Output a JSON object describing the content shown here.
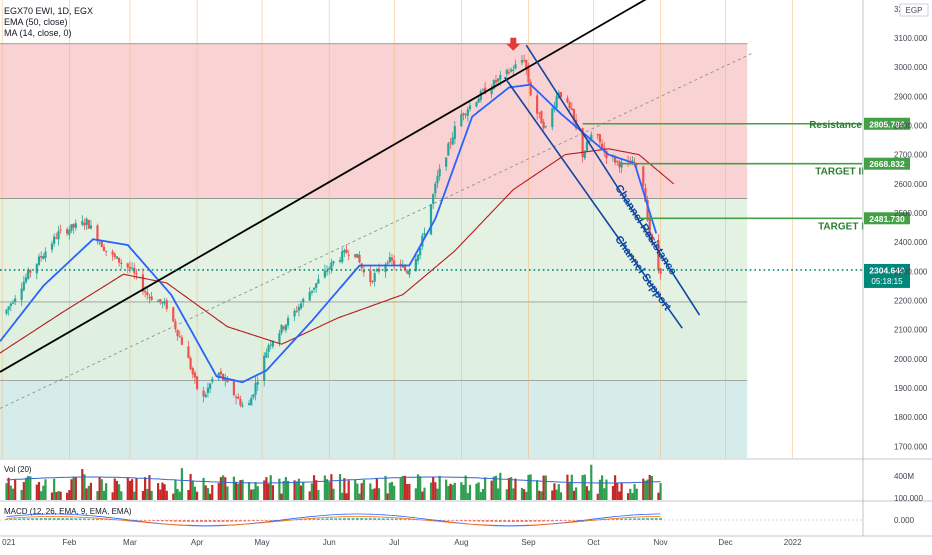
{
  "header": {
    "symbol_line": "EGX70 EWI, 1D, EGX",
    "ema_label": "EMA (50, close)",
    "ma_label": "MA (14, close, 0)",
    "currency": "EGP"
  },
  "colors": {
    "up": "#26a69a",
    "down": "#ef5350",
    "ema50": "#b71c1c",
    "ma14": "#2962ff",
    "channel": "#0d47a1",
    "trend": "#000000",
    "level_line": "#43a047",
    "level_text": "#2e7d32",
    "price_line": "#00897b",
    "zone_red": "#f9d3d3",
    "zone_green": "#e3f2e3",
    "zone_teal": "#d5eceb",
    "volume_up": "#2e9e4f",
    "volume_down": "#c62828",
    "volume_ma": "#3366cc"
  },
  "chart_data": {
    "type": "candlestick",
    "y_axis": {
      "ticks": [
        3200,
        3100,
        3000,
        2900,
        2800,
        2700,
        2600,
        2500,
        2400,
        2300,
        2200,
        2100,
        2000,
        1900,
        1800,
        1700
      ],
      "tick_labels": [
        "3200.000",
        "3100.000",
        "3000.000",
        "2900.000",
        "2800.000",
        "2700.000",
        "2600.000",
        "2500.000",
        "2400.000",
        "2300.000",
        "2200.000",
        "2100.000",
        "2000.000",
        "1900.000",
        "1800.000",
        "1700.000"
      ],
      "range": [
        1660,
        3230
      ]
    },
    "x_axis": {
      "labels": [
        "021",
        "Feb",
        "Mar",
        "Apr",
        "May",
        "Jun",
        "Jul",
        "Aug",
        "Sep",
        "Oct",
        "Nov",
        "Dec",
        "2022"
      ],
      "positions": [
        "2021-01-01",
        "2021-02-01",
        "2021-03-01",
        "2021-04-01",
        "2021-05-01",
        "2021-06-01",
        "2021-07-01",
        "2021-08-01",
        "2021-09-01",
        "2021-10-01",
        "2021-11-01",
        "2021-12-01",
        "2022-01-01"
      ],
      "range": [
        "2020-12-31",
        "2022-02-02"
      ]
    },
    "price_anchors": [
      {
        "d": "2020-12-31",
        "v": 2130
      },
      {
        "d": "2021-01-13",
        "v": 2290
      },
      {
        "d": "2021-01-27",
        "v": 2430
      },
      {
        "d": "2021-02-09",
        "v": 2470
      },
      {
        "d": "2021-02-19",
        "v": 2360
      },
      {
        "d": "2021-03-01",
        "v": 2310
      },
      {
        "d": "2021-03-09",
        "v": 2220
      },
      {
        "d": "2021-03-18",
        "v": 2180
      },
      {
        "d": "2021-03-27",
        "v": 2020
      },
      {
        "d": "2021-04-03",
        "v": 1850
      },
      {
        "d": "2021-04-10",
        "v": 1960
      },
      {
        "d": "2021-04-16",
        "v": 1900
      },
      {
        "d": "2021-04-24",
        "v": 1820
      },
      {
        "d": "2021-05-04",
        "v": 2050
      },
      {
        "d": "2021-05-14",
        "v": 2140
      },
      {
        "d": "2021-05-24",
        "v": 2240
      },
      {
        "d": "2021-06-04",
        "v": 2340
      },
      {
        "d": "2021-06-12",
        "v": 2380
      },
      {
        "d": "2021-06-19",
        "v": 2260
      },
      {
        "d": "2021-06-28",
        "v": 2340
      },
      {
        "d": "2021-07-07",
        "v": 2300
      },
      {
        "d": "2021-07-13",
        "v": 2380
      },
      {
        "d": "2021-07-21",
        "v": 2620
      },
      {
        "d": "2021-07-31",
        "v": 2830
      },
      {
        "d": "2021-08-12",
        "v": 2920
      },
      {
        "d": "2021-08-24",
        "v": 2990
      },
      {
        "d": "2021-08-30",
        "v": 3030
      },
      {
        "d": "2021-09-03",
        "v": 2870
      },
      {
        "d": "2021-09-09",
        "v": 2790
      },
      {
        "d": "2021-09-15",
        "v": 2920
      },
      {
        "d": "2021-09-21",
        "v": 2840
      },
      {
        "d": "2021-09-26",
        "v": 2700
      },
      {
        "d": "2021-10-01",
        "v": 2780
      },
      {
        "d": "2021-10-07",
        "v": 2700
      },
      {
        "d": "2021-10-15",
        "v": 2660
      },
      {
        "d": "2021-10-20",
        "v": 2670
      },
      {
        "d": "2021-10-24",
        "v": 2600
      },
      {
        "d": "2021-10-27",
        "v": 2430
      },
      {
        "d": "2021-10-30",
        "v": 2310
      },
      {
        "d": "2021-11-01",
        "v": 2304.64
      }
    ],
    "ema50_anchors": [
      {
        "d": "2020-12-31",
        "v": 2020
      },
      {
        "d": "2021-01-29",
        "v": 2160
      },
      {
        "d": "2021-02-26",
        "v": 2290
      },
      {
        "d": "2021-03-18",
        "v": 2260
      },
      {
        "d": "2021-04-15",
        "v": 2110
      },
      {
        "d": "2021-05-10",
        "v": 2050
      },
      {
        "d": "2021-06-05",
        "v": 2140
      },
      {
        "d": "2021-07-05",
        "v": 2220
      },
      {
        "d": "2021-07-29",
        "v": 2370
      },
      {
        "d": "2021-08-25",
        "v": 2580
      },
      {
        "d": "2021-09-18",
        "v": 2700
      },
      {
        "d": "2021-10-08",
        "v": 2720
      },
      {
        "d": "2021-10-22",
        "v": 2700
      },
      {
        "d": "2021-11-07",
        "v": 2600
      }
    ],
    "ma14_anchors": [
      {
        "d": "2020-12-31",
        "v": 2060
      },
      {
        "d": "2021-01-20",
        "v": 2250
      },
      {
        "d": "2021-02-12",
        "v": 2410
      },
      {
        "d": "2021-02-28",
        "v": 2390
      },
      {
        "d": "2021-03-20",
        "v": 2220
      },
      {
        "d": "2021-04-10",
        "v": 1940
      },
      {
        "d": "2021-04-22",
        "v": 1920
      },
      {
        "d": "2021-05-03",
        "v": 1960
      },
      {
        "d": "2021-05-24",
        "v": 2130
      },
      {
        "d": "2021-06-15",
        "v": 2320
      },
      {
        "d": "2021-07-08",
        "v": 2320
      },
      {
        "d": "2021-07-20",
        "v": 2480
      },
      {
        "d": "2021-08-06",
        "v": 2830
      },
      {
        "d": "2021-08-23",
        "v": 2930
      },
      {
        "d": "2021-09-02",
        "v": 2940
      },
      {
        "d": "2021-09-16",
        "v": 2840
      },
      {
        "d": "2021-10-08",
        "v": 2700
      },
      {
        "d": "2021-10-20",
        "v": 2670
      },
      {
        "d": "2021-10-30",
        "v": 2430
      }
    ],
    "zones": [
      {
        "from": 2550,
        "to": 3080,
        "fill": "#f9d3d3"
      },
      {
        "from": 2195,
        "to": 2550,
        "fill": "#e3f2e3"
      },
      {
        "from": 1925,
        "to": 2195,
        "fill": "#e0f0e0"
      },
      {
        "from": 1660,
        "to": 1925,
        "fill": "#d5eceb"
      }
    ],
    "zones_end_date": "2021-12-11",
    "levels": [
      {
        "label": "Resistance",
        "value": 2805.786,
        "value_label": "2805.786",
        "from": "2021-09-26",
        "bg": "#43a047"
      },
      {
        "label": "TARGET II",
        "value": 2668.832,
        "value_label": "2668.832",
        "from": "2021-10-13",
        "bg": "#43a047"
      },
      {
        "label": "TARGET I",
        "value": 2481.73,
        "value_label": "2481.730",
        "from": "2021-10-22",
        "bg": "#43a047"
      }
    ],
    "current_price": {
      "value": 2304.64,
      "label": "2304.640",
      "countdown": "05:18:15"
    },
    "trendline": {
      "from": {
        "d": "2020-12-31",
        "v": 1955
      },
      "to": {
        "d": "2021-10-27",
        "v": 3240
      }
    },
    "dashed_trend": {
      "from": {
        "d": "2020-12-31",
        "v": 1830
      },
      "to": {
        "d": "2021-12-14",
        "v": 3050
      }
    },
    "channel": {
      "resistance": {
        "from": {
          "d": "2021-08-31",
          "v": 3075
        },
        "to": {
          "d": "2021-11-19",
          "v": 2150
        }
      },
      "support": {
        "from": {
          "d": "2021-08-21",
          "v": 2965
        },
        "to": {
          "d": "2021-11-11",
          "v": 2105
        }
      },
      "resistance_label": "Channel Resistance",
      "support_label": "Channel Support"
    },
    "arrow_marker": {
      "d": "2021-08-25",
      "v": 3080
    },
    "volume": {
      "label": "Vol (20)",
      "axis_label": "400M",
      "axis_value": 400
    },
    "macd": {
      "label": "MACD (12, 26, EMA, 9, EMA, EMA)",
      "tick_labels": [
        "100.000",
        "0.000"
      ],
      "ticks": [
        100,
        0
      ]
    }
  }
}
